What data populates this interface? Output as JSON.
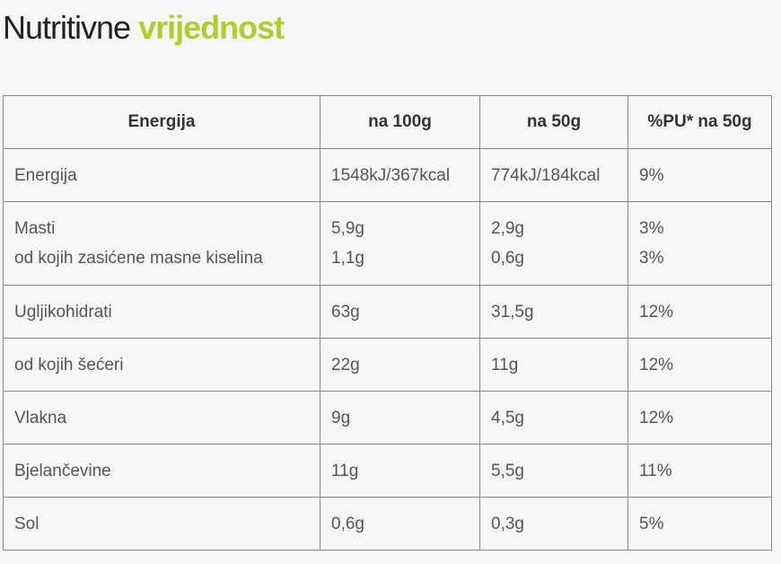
{
  "title": {
    "plain": "Nutritivne",
    "highlight": "vrijednost"
  },
  "table": {
    "header": [
      "Energija",
      "na 100g",
      "na 50g",
      "%PU* na 50g"
    ],
    "rows": [
      [
        [
          "Energija"
        ],
        [
          "1548kJ/367kcal"
        ],
        [
          "774kJ/184kcal"
        ],
        [
          "9%"
        ]
      ],
      [
        [
          "Masti",
          "od kojih zasićene masne kiselina"
        ],
        [
          "5,9g",
          "1,1g"
        ],
        [
          "2,9g",
          "0,6g"
        ],
        [
          "3%",
          "3%"
        ]
      ],
      [
        [
          "Ugljikohidrati"
        ],
        [
          "63g"
        ],
        [
          "31,5g"
        ],
        [
          "12%"
        ]
      ],
      [
        [
          "od kojih šećeri"
        ],
        [
          "22g"
        ],
        [
          "11g"
        ],
        [
          "12%"
        ]
      ],
      [
        [
          "Vlakna"
        ],
        [
          "9g"
        ],
        [
          "4,5g"
        ],
        [
          "12%"
        ]
      ],
      [
        [
          "Bjelančevine"
        ],
        [
          "11g"
        ],
        [
          "5,5g"
        ],
        [
          "11%"
        ]
      ],
      [
        [
          "Sol"
        ],
        [
          "0,6g"
        ],
        [
          "0,3g"
        ],
        [
          "5%"
        ]
      ]
    ]
  }
}
